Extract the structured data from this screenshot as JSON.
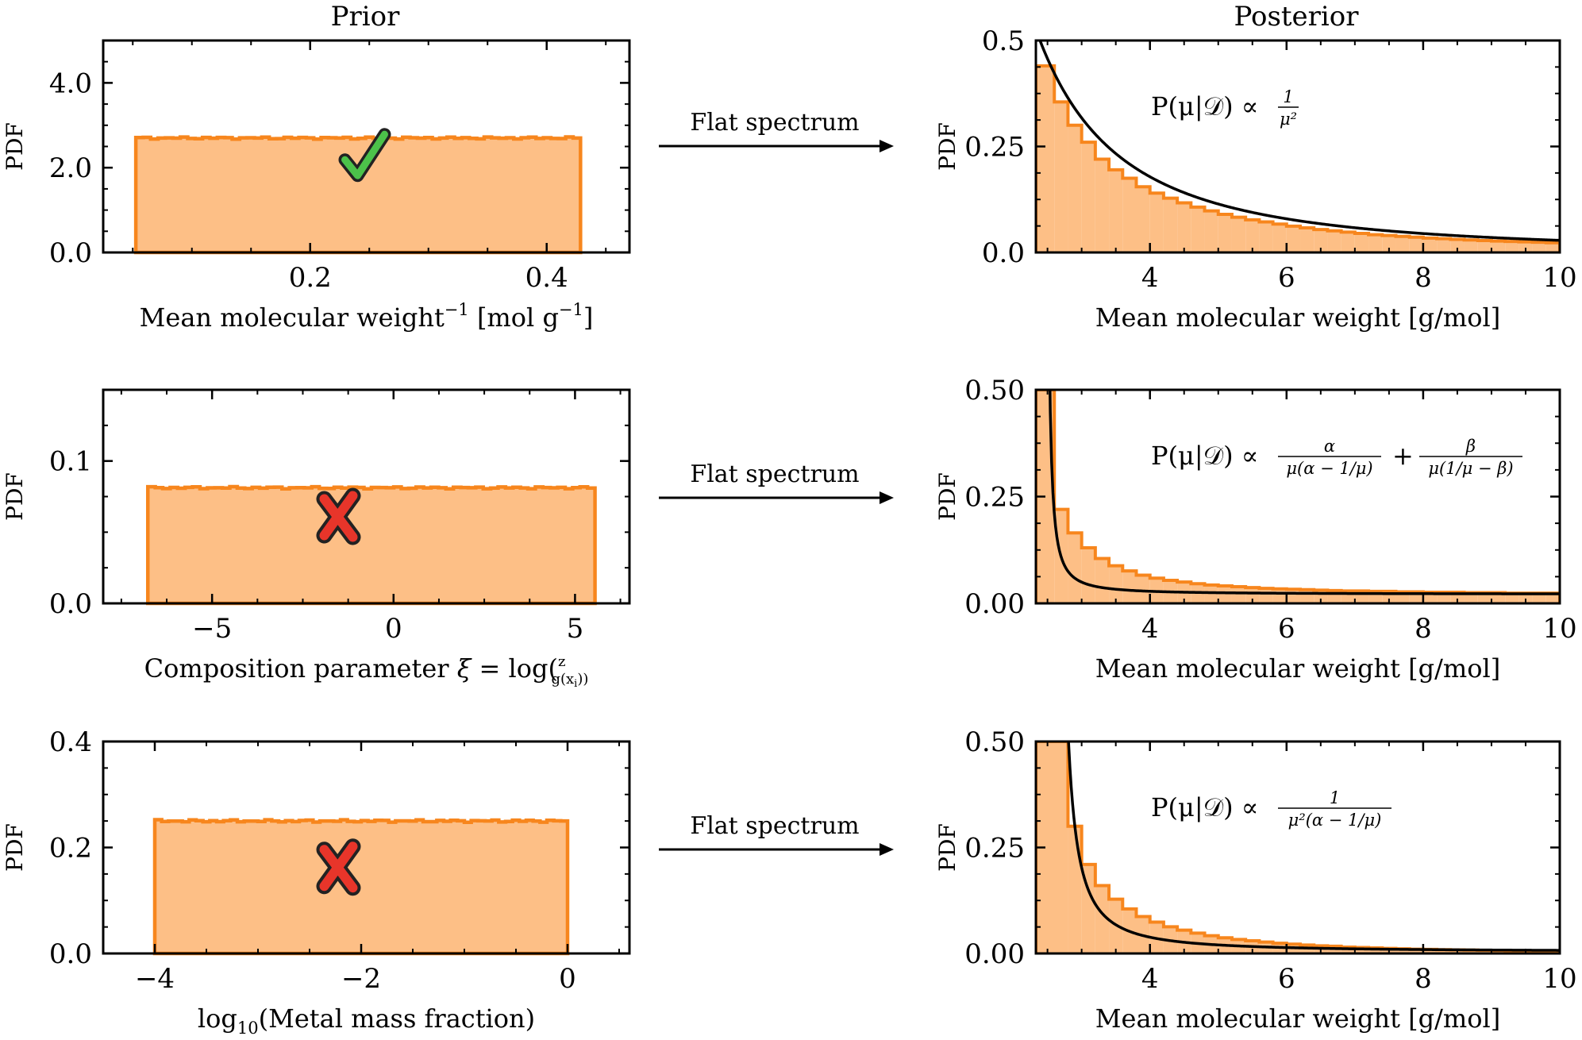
{
  "column_titles": {
    "prior": "Prior",
    "posterior": "Posterior"
  },
  "colors": {
    "hist_fill": "#fdbf86",
    "hist_edge": "#f7861d",
    "curve": "#000000",
    "check": "#4cc24a",
    "cross": "#e8352a",
    "outline": "#222222"
  },
  "rows": [
    {
      "arrow_label": "Flat spectrum",
      "prior": {
        "marker": "check-mark",
        "chart_data": {
          "type": "histogram",
          "title": "Prior",
          "xlabel_parts": [
            "Mean molecular weight",
            "−1",
            " [mol g",
            "−1",
            "]"
          ],
          "ylabel": "PDF",
          "xlim": [
            0.025,
            0.47
          ],
          "ylim": [
            0,
            5.0
          ],
          "xticks": [
            0.2,
            0.4
          ],
          "xtick_labels": [
            "0.2",
            "0.4"
          ],
          "yticks": [
            0.0,
            2.0,
            4.0
          ],
          "ytick_labels": [
            "0.0",
            "2.0",
            "4.0"
          ],
          "bin_range": [
            0.0526,
            0.4286
          ],
          "density": 2.7,
          "grid": false
        }
      },
      "posterior": {
        "formula": {
          "lhs": "P(μ|𝒟) ∝",
          "num1": "1",
          "den1": "μ²"
        },
        "chart_data": {
          "type": "histogram+line",
          "title": "Posterior",
          "xlabel": "Mean molecular weight [g/mol]",
          "ylabel": "PDF",
          "xlim": [
            2.33,
            10
          ],
          "ylim": [
            0,
            0.5
          ],
          "xticks": [
            4,
            6,
            8,
            10
          ],
          "xtick_labels": [
            "4",
            "6",
            "8",
            "10"
          ],
          "yticks": [
            0.0,
            0.25,
            0.5
          ],
          "ytick_labels": [
            "0.0",
            "0.25",
            "0.5"
          ],
          "bins": [
            2.33,
            2.6,
            2.8,
            3.0,
            3.2,
            3.4,
            3.6,
            3.8,
            4.0,
            4.2,
            4.4,
            4.6,
            4.8,
            5.0,
            5.2,
            5.4,
            5.6,
            5.8,
            6.0,
            6.2,
            6.4,
            6.6,
            6.8,
            7.0,
            7.2,
            7.4,
            7.6,
            7.8,
            8.0,
            8.2,
            8.4,
            8.6,
            8.8,
            9.0,
            9.2,
            9.4,
            9.6,
            9.8,
            10.0
          ],
          "bin_values": [
            0.44,
            0.355,
            0.3,
            0.26,
            0.22,
            0.195,
            0.175,
            0.155,
            0.14,
            0.128,
            0.117,
            0.107,
            0.098,
            0.09,
            0.083,
            0.077,
            0.072,
            0.067,
            0.062,
            0.058,
            0.054,
            0.051,
            0.048,
            0.045,
            0.042,
            0.04,
            0.038,
            0.036,
            0.034,
            0.0325,
            0.031,
            0.0295,
            0.028,
            0.027,
            0.026,
            0.025,
            0.024,
            0.023
          ],
          "curve": {
            "model": "c / mu^2",
            "c": 2.857
          },
          "grid": false
        }
      }
    },
    {
      "arrow_label": "Flat spectrum",
      "prior": {
        "marker": "cross-mark",
        "chart_data": {
          "type": "histogram",
          "xlabel_parts": [
            "Composition parameter ",
            "ξ",
            " = log(",
            "z",
            "g(x",
            "i",
            "))"
          ],
          "ylabel": "PDF",
          "xlim": [
            -8.0,
            6.5
          ],
          "ylim": [
            0,
            0.15
          ],
          "xticks": [
            -5,
            0,
            5
          ],
          "xtick_labels": [
            "−5",
            "0",
            "5"
          ],
          "yticks": [
            0.0,
            0.1
          ],
          "ytick_labels": [
            "0.0",
            "0.1"
          ],
          "bin_range": [
            -6.77,
            5.55
          ],
          "density": 0.0812,
          "grid": false
        }
      },
      "posterior": {
        "formula": {
          "lhs": "P(μ|𝒟) ∝",
          "num1": "α",
          "den1": "μ(α − 1/μ)",
          "op": "+",
          "num2": "β",
          "den2": "μ(1/μ − β)"
        },
        "chart_data": {
          "type": "histogram+line",
          "xlabel": "Mean molecular weight [g/mol]",
          "ylabel": "PDF",
          "xlim": [
            2.33,
            10
          ],
          "ylim": [
            0,
            0.5
          ],
          "xticks": [
            4,
            6,
            8,
            10
          ],
          "xtick_labels": [
            "4",
            "6",
            "8",
            "10"
          ],
          "yticks": [
            0.0,
            0.25,
            0.5
          ],
          "ytick_labels": [
            "0.00",
            "0.25",
            "0.50"
          ],
          "bins": [
            2.33,
            2.6,
            2.8,
            3.0,
            3.2,
            3.4,
            3.6,
            3.8,
            4.0,
            4.2,
            4.4,
            4.6,
            4.8,
            5.0,
            5.2,
            5.4,
            5.6,
            5.8,
            6.0,
            6.2,
            6.4,
            6.6,
            6.8,
            7.0,
            7.2,
            7.4,
            7.6,
            7.8,
            8.0,
            8.2,
            8.4,
            8.6,
            8.8,
            9.0,
            9.2,
            9.4,
            9.6,
            9.8,
            10.0
          ],
          "bin_values": [
            0.5,
            0.22,
            0.165,
            0.13,
            0.105,
            0.088,
            0.076,
            0.066,
            0.059,
            0.054,
            0.05,
            0.046,
            0.043,
            0.041,
            0.039,
            0.037,
            0.035,
            0.034,
            0.033,
            0.032,
            0.031,
            0.03,
            0.029,
            0.029,
            0.028,
            0.028,
            0.027,
            0.027,
            0.026,
            0.026,
            0.026,
            0.025,
            0.025,
            0.025,
            0.024,
            0.024,
            0.024,
            0.024
          ],
          "curve": {
            "model": "a/(mu^2 (a - 1/mu)) + b/(mu(1/mu - b)) fit",
            "pole": 2.47
          },
          "grid": false
        }
      }
    },
    {
      "arrow_label": "Flat spectrum",
      "prior": {
        "marker": "cross-mark",
        "chart_data": {
          "type": "histogram",
          "xlabel_parts": [
            "log",
            "10",
            "(Metal mass fraction)"
          ],
          "ylabel": "PDF",
          "xlim": [
            -4.5,
            0.6
          ],
          "ylim": [
            0,
            0.4
          ],
          "xticks": [
            -4,
            -2,
            0
          ],
          "xtick_labels": [
            "−4",
            "−2",
            "0"
          ],
          "yticks": [
            0.0,
            0.2,
            0.4
          ],
          "ytick_labels": [
            "0.0",
            "0.2",
            "0.4"
          ],
          "bin_range": [
            -4.0,
            0.0
          ],
          "density": 0.25,
          "grid": false
        }
      },
      "posterior": {
        "formula": {
          "lhs": "P(μ|𝒟) ∝",
          "num1": "1",
          "den1": "μ²(α − 1/μ)"
        },
        "chart_data": {
          "type": "histogram+line",
          "xlabel": "Mean molecular weight [g/mol]",
          "ylabel": "PDF",
          "xlim": [
            2.33,
            10
          ],
          "ylim": [
            0,
            0.5
          ],
          "xticks": [
            4,
            6,
            8,
            10
          ],
          "xtick_labels": [
            "4",
            "6",
            "8",
            "10"
          ],
          "yticks": [
            0.0,
            0.25,
            0.5
          ],
          "ytick_labels": [
            "0.00",
            "0.25",
            "0.50"
          ],
          "bins": [
            2.33,
            2.8,
            3.0,
            3.2,
            3.4,
            3.6,
            3.8,
            4.0,
            4.2,
            4.4,
            4.6,
            4.8,
            5.0,
            5.2,
            5.4,
            5.6,
            5.8,
            6.0,
            6.2,
            6.4,
            6.6,
            6.8,
            7.0,
            7.2,
            7.4,
            7.6,
            7.8,
            8.0,
            8.2,
            8.4,
            8.6,
            8.8,
            9.0,
            9.2,
            9.4,
            9.6,
            9.8,
            10.0
          ],
          "bin_values": [
            0.5,
            0.3,
            0.21,
            0.16,
            0.128,
            0.105,
            0.087,
            0.074,
            0.063,
            0.055,
            0.048,
            0.042,
            0.037,
            0.033,
            0.03,
            0.027,
            0.024,
            0.022,
            0.02,
            0.018,
            0.017,
            0.015,
            0.014,
            0.013,
            0.012,
            0.011,
            0.01,
            0.0095,
            0.009,
            0.0085,
            0.008,
            0.0075,
            0.007,
            0.0065,
            0.006,
            0.0055,
            0.005
          ],
          "curve": {
            "model": "c/(mu^2 (a - 1/mu)) fit",
            "pole": 2.6
          },
          "grid": false
        }
      }
    }
  ]
}
